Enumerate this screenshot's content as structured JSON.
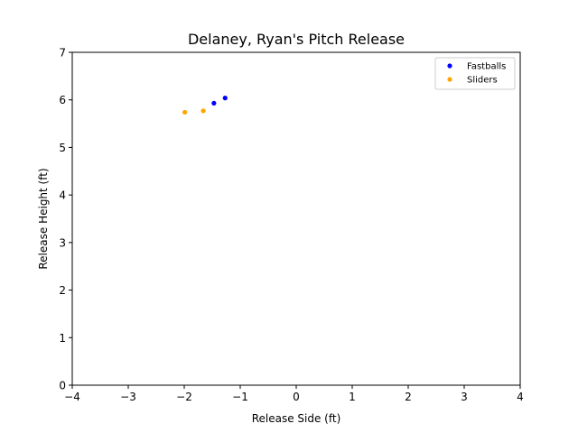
{
  "chart_data": {
    "type": "scatter",
    "title": "Delaney, Ryan's Pitch Release",
    "xlabel": "Release Side (ft)",
    "ylabel": "Release Height (ft)",
    "xlim": [
      -4,
      4
    ],
    "ylim": [
      0,
      7
    ],
    "xticks": [
      -4,
      -3,
      -2,
      -1,
      0,
      1,
      2,
      3,
      4
    ],
    "xtick_labels": [
      "−4",
      "−3",
      "−2",
      "−1",
      "0",
      "1",
      "2",
      "3",
      "4"
    ],
    "yticks": [
      0,
      1,
      2,
      3,
      4,
      5,
      6,
      7
    ],
    "ytick_labels": [
      "0",
      "1",
      "2",
      "3",
      "4",
      "5",
      "6",
      "7"
    ],
    "grid": false,
    "legend_position": "top-right",
    "series": [
      {
        "name": "Fastballs",
        "color": "#0000ff",
        "points": [
          {
            "x": -1.47,
            "y": 5.93
          },
          {
            "x": -1.27,
            "y": 6.04
          }
        ]
      },
      {
        "name": "Sliders",
        "color": "#ffa500",
        "points": [
          {
            "x": -1.99,
            "y": 5.74
          },
          {
            "x": -1.66,
            "y": 5.77
          }
        ]
      }
    ]
  }
}
